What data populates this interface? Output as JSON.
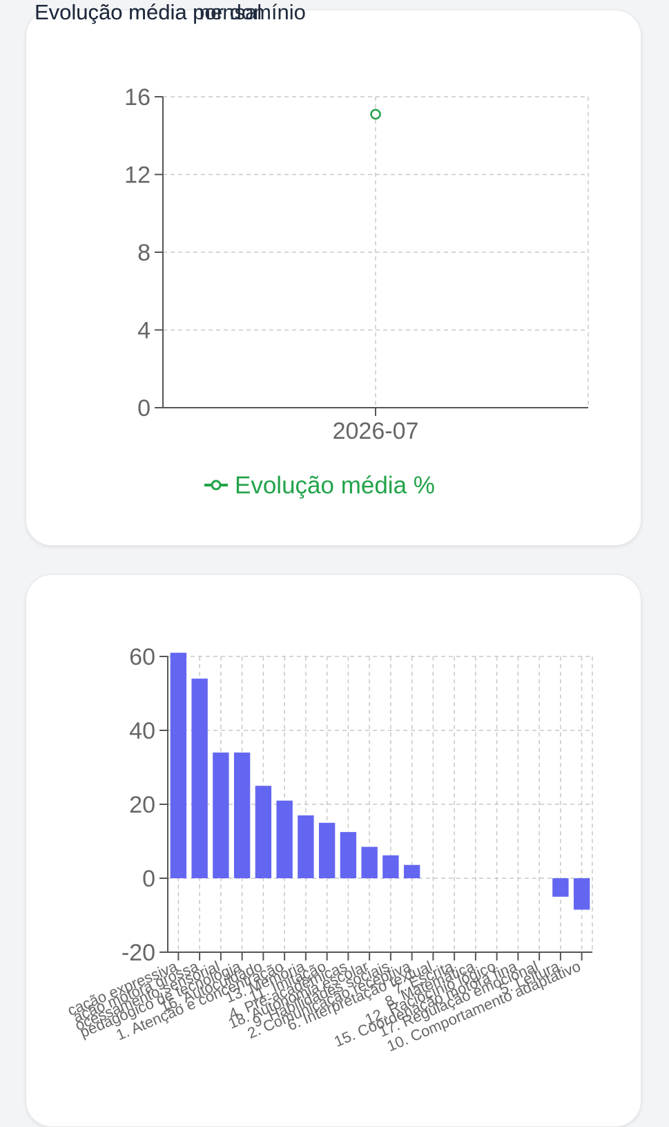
{
  "colors": {
    "line_series": "#22a34a",
    "bar_series": "#6366f1",
    "axis": "#555555",
    "grid": "#c8c8c8",
    "tick_text": "#666666",
    "title": "#1f2a3d"
  },
  "cards": [
    {
      "title": "Evolução média mensal"
    },
    {
      "title": "Evolução média por domínio"
    }
  ],
  "chart_data": [
    {
      "type": "line",
      "title": "Evolução média mensal",
      "x": [
        "2026-07"
      ],
      "series": [
        {
          "name": "Evolução média %",
          "values": [
            15.1
          ]
        }
      ],
      "ylim": [
        0,
        16
      ],
      "yticks": [
        0,
        4,
        8,
        12,
        16
      ],
      "grid": true,
      "legend": "bottom"
    },
    {
      "type": "bar",
      "title": "Evolução média por domínio",
      "categories": [
        "cação expressiva",
        "ação motora grossa",
        "ocessamento sensorial",
        "pedagógico de tecnologia",
        "16. Autocuidado",
        "1. Atenção e concentração",
        "13. Memória",
        "11. Imitação",
        "4. Pré-acadêmicas",
        "18. Autonomia escolar",
        "9. Habilidades sociais",
        "2. Comunicação receptiva",
        "6. Interpretação textual",
        "7. Escrita",
        "8. Matemática",
        "12. Raciocínio lógico",
        "15. Coordenação motora fina",
        "17. Regulação emocional",
        "5. Leitura",
        "10. Comportamento adaptativo"
      ],
      "series": [
        {
          "name": "",
          "values": [
            61,
            54,
            34,
            34,
            25,
            21,
            17,
            15,
            12.5,
            8.5,
            6.2,
            3.6,
            0,
            0,
            0,
            0,
            0,
            0,
            -5,
            -8.5
          ]
        }
      ],
      "ylim": [
        -20,
        60
      ],
      "yticks": [
        -20,
        0,
        20,
        40,
        60
      ],
      "grid": true,
      "legend": "none"
    }
  ]
}
